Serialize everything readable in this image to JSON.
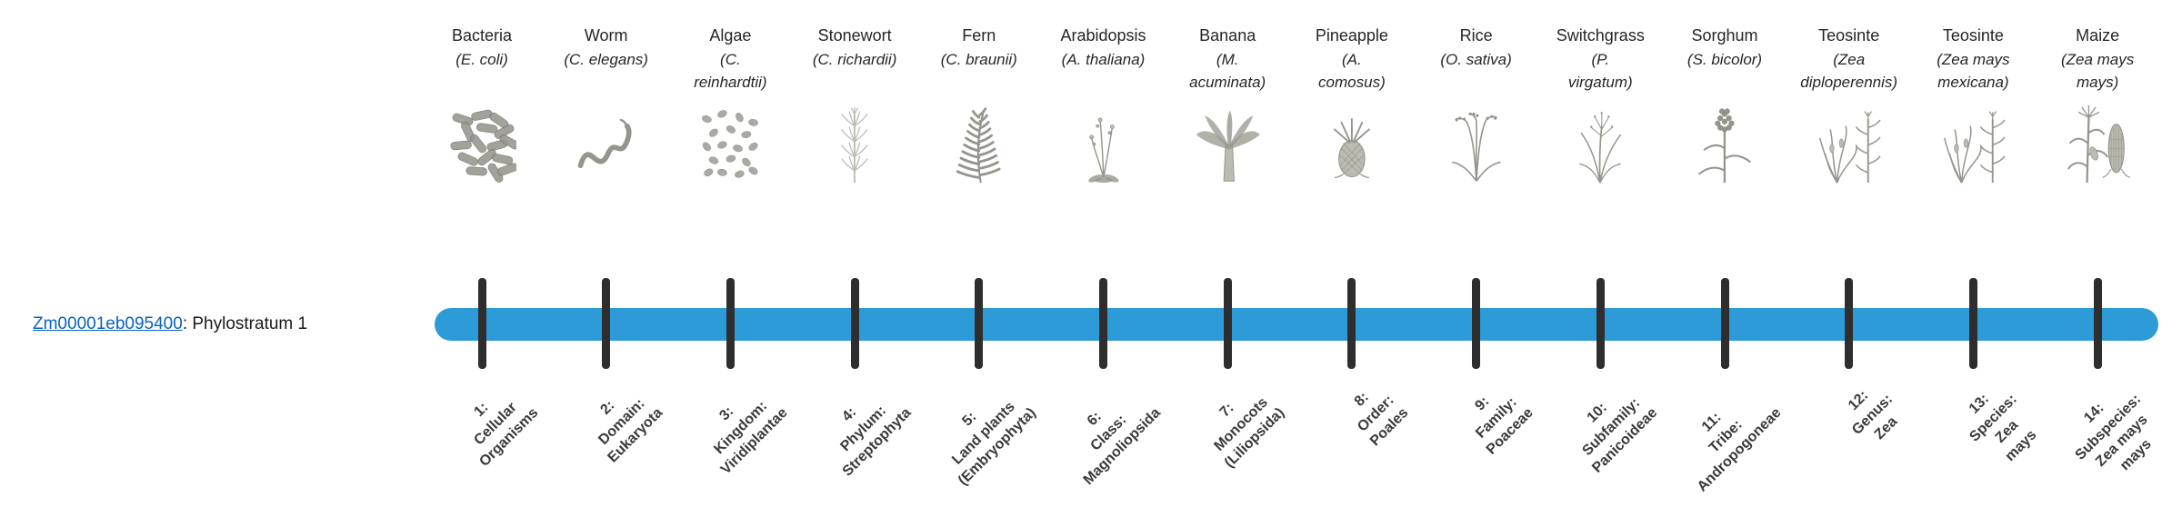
{
  "gene": {
    "id": "Zm00001eb095400",
    "suffix": ": Phylostratum 1"
  },
  "colors": {
    "bar": "#2E9BD9",
    "tick": "#2e2e2e",
    "link": "#0563C1"
  },
  "organisms": [
    {
      "common": "Bacteria",
      "sci": "(E. coli)",
      "icon": "bacteria-icon",
      "stratum": "1:\nCellular\nOrganisms"
    },
    {
      "common": "Worm",
      "sci": "(C. elegans)",
      "icon": "worm-icon",
      "stratum": "2:\nDomain:\nEukaryota"
    },
    {
      "common": "Algae",
      "sci": "(C.\nreinhardtii)",
      "icon": "algae-icon",
      "stratum": "3:\nKingdom:\nViridiplantae"
    },
    {
      "common": "Stonewort",
      "sci": "(C. richardii)",
      "icon": "stonewort-icon",
      "stratum": "4:\nPhylum:\nStreptophyta"
    },
    {
      "common": "Fern",
      "sci": "(C. braunii)",
      "icon": "fern-icon",
      "stratum": "5:\nLand plants\n(Embryophyta)"
    },
    {
      "common": "Arabidopsis",
      "sci": "(A. thaliana)",
      "icon": "arabidopsis-icon",
      "stratum": "6:\nClass:\nMagnoliopsida"
    },
    {
      "common": "Banana",
      "sci": "(M.\nacuminata)",
      "icon": "banana-icon",
      "stratum": "7:\nMonocots\n(Liliopsida)"
    },
    {
      "common": "Pineapple",
      "sci": "(A.\ncomosus)",
      "icon": "pineapple-icon",
      "stratum": "8:\nOrder:\nPoales"
    },
    {
      "common": "Rice",
      "sci": "(O. sativa)",
      "icon": "rice-icon",
      "stratum": "9:\nFamily:\nPoaceae"
    },
    {
      "common": "Switchgrass",
      "sci": "(P.\nvirgatum)",
      "icon": "switchgrass-icon",
      "stratum": "10:\nSubfamily:\nPanicoideae"
    },
    {
      "common": "Sorghum",
      "sci": "(S. bicolor)",
      "icon": "sorghum-icon",
      "stratum": "11:\nTribe:\nAndropogoneae"
    },
    {
      "common": "Teosinte",
      "sci": "(Zea\ndiploperennis)",
      "icon": "teosinte-diploperennis-icon",
      "stratum": "12:\nGenus:\nZea"
    },
    {
      "common": "Teosinte",
      "sci": "(Zea mays\nmexicana)",
      "icon": "teosinte-mexicana-icon",
      "stratum": "13:\nSpecies:\nZea\nmays"
    },
    {
      "common": "Maize",
      "sci": "(Zea mays\nmays)",
      "icon": "maize-icon",
      "stratum": "14:\nSubspecies:\nZea mays\nmays"
    }
  ]
}
